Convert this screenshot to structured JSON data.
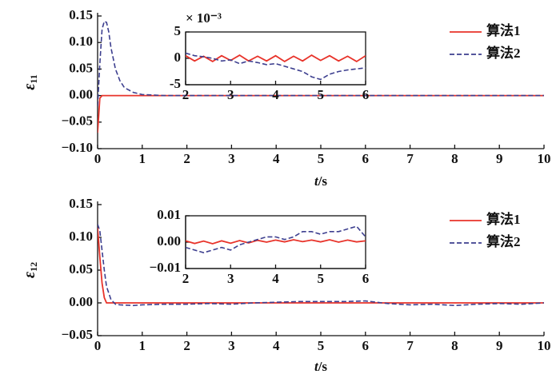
{
  "chart_data": [
    {
      "type": "line",
      "role": "main",
      "x": [
        0,
        0.05,
        0.1,
        0.15,
        0.2,
        0.25,
        0.3,
        0.4,
        0.5,
        0.6,
        0.8,
        1,
        1.5,
        2,
        3,
        4,
        5,
        6,
        7,
        8,
        9,
        10
      ],
      "series": [
        {
          "name": "算法1",
          "color": "#e8332a",
          "style": "solid",
          "values": [
            -0.07,
            -0.005,
            0,
            0,
            0,
            0,
            0,
            0,
            0,
            0,
            0,
            0,
            0,
            0,
            0,
            0,
            0,
            0,
            0,
            0,
            0,
            0
          ]
        },
        {
          "name": "算法2",
          "color": "#3d3f8f",
          "style": "dashed",
          "values": [
            -0.02,
            0.06,
            0.125,
            0.14,
            0.138,
            0.12,
            0.09,
            0.05,
            0.028,
            0.015,
            0.006,
            0.002,
            0,
            0,
            0,
            0,
            0,
            0,
            0,
            0,
            0,
            0
          ]
        }
      ],
      "xlim": [
        0,
        10
      ],
      "xticks": [
        0,
        1,
        2,
        3,
        4,
        5,
        6,
        7,
        8,
        9,
        10
      ],
      "ylim": [
        -0.1,
        0.15
      ],
      "yticks": [
        {
          "value": -0.1,
          "label": "−0.10"
        },
        {
          "value": -0.05,
          "label": "−0.05"
        },
        {
          "value": 0,
          "label": "0.00"
        },
        0.05,
        {
          "value": 0.1,
          "label": "0.10"
        },
        0.15
      ],
      "xlabel": {
        "symbol": "t",
        "unit": "/s"
      },
      "ylabel": {
        "symbol": "ε",
        "subscript": "11"
      },
      "legend": "upper right"
    },
    {
      "type": "line",
      "role": "inset",
      "x": [
        2,
        2.2,
        2.4,
        2.6,
        2.8,
        3,
        3.2,
        3.4,
        3.6,
        3.8,
        4,
        4.2,
        4.4,
        4.6,
        4.8,
        5,
        5.2,
        5.4,
        5.6,
        5.8,
        6
      ],
      "series": [
        {
          "name": "算法1",
          "color": "#e8332a",
          "style": "solid",
          "values": [
            0.5,
            -0.5,
            0.4,
            -0.6,
            0.5,
            -0.4,
            0.6,
            -0.5,
            0.4,
            -0.5,
            0.5,
            -0.6,
            0.4,
            -0.5,
            0.6,
            -0.4,
            0.5,
            -0.5,
            0.4,
            -0.6,
            0.5
          ]
        },
        {
          "name": "算法2",
          "color": "#3d3f8f",
          "style": "dashed",
          "values": [
            1,
            0.5,
            0.3,
            0,
            -0.5,
            -0.3,
            -1,
            -0.5,
            -0.8,
            -1.2,
            -1,
            -1.5,
            -2,
            -2.5,
            -3.5,
            -4,
            -3,
            -2.5,
            -2.2,
            -2,
            -1.8
          ]
        }
      ],
      "xlim": [
        2,
        6
      ],
      "xticks": [
        2,
        3,
        4,
        5,
        6
      ],
      "ylim": [
        -5,
        5
      ],
      "yticks": [
        -5,
        0,
        5
      ],
      "multiplier": "× 10⁻³"
    },
    {
      "type": "line",
      "role": "main",
      "x": [
        0,
        0.05,
        0.1,
        0.15,
        0.2,
        0.3,
        0.4,
        0.5,
        0.8,
        1,
        1.5,
        2,
        2.5,
        3,
        3.5,
        4,
        4.5,
        5,
        5.5,
        6,
        6.5,
        7,
        7.5,
        8,
        8.5,
        9,
        9.5,
        10
      ],
      "series": [
        {
          "name": "算法1",
          "color": "#e8332a",
          "style": "solid",
          "values": [
            0.115,
            0.07,
            0.03,
            0.008,
            0,
            0,
            0,
            0,
            0,
            0,
            0,
            0,
            0,
            0,
            0,
            0,
            0,
            0,
            0,
            0,
            0,
            0,
            0,
            0,
            0,
            0,
            0,
            0
          ]
        },
        {
          "name": "算法2",
          "color": "#3d3f8f",
          "style": "dashed",
          "values": [
            0.12,
            0.11,
            0.08,
            0.05,
            0.025,
            0.005,
            -0.002,
            -0.003,
            -0.004,
            -0.003,
            -0.002,
            -0.002,
            -0.001,
            -0.002,
            0,
            0.001,
            0.002,
            0.002,
            0.002,
            0.003,
            -0.001,
            -0.003,
            -0.002,
            -0.004,
            -0.002,
            -0.001,
            -0.002,
            0
          ]
        }
      ],
      "xlim": [
        0,
        10
      ],
      "xticks": [
        0,
        1,
        2,
        3,
        4,
        5,
        6,
        7,
        8,
        9,
        10
      ],
      "ylim": [
        -0.05,
        0.15
      ],
      "yticks": [
        {
          "value": -0.05,
          "label": "−0.05"
        },
        {
          "value": 0,
          "label": "0.00"
        },
        0.05,
        {
          "value": 0.1,
          "label": "0.10"
        },
        0.15
      ],
      "xlabel": {
        "symbol": "t",
        "unit": "/s"
      },
      "ylabel": {
        "symbol": "ε",
        "subscript": "12"
      },
      "legend": "upper right"
    },
    {
      "type": "line",
      "role": "inset",
      "x": [
        2,
        2.2,
        2.4,
        2.6,
        2.8,
        3,
        3.2,
        3.4,
        3.6,
        3.8,
        4,
        4.2,
        4.4,
        4.6,
        4.8,
        5,
        5.2,
        5.4,
        5.6,
        5.8,
        6
      ],
      "series": [
        {
          "name": "算法1",
          "color": "#e8332a",
          "style": "solid",
          "values": [
            0.0005,
            -0.0005,
            0.0004,
            -0.0006,
            0.0005,
            -0.0004,
            0.0006,
            -0.0003,
            0.0007,
            0,
            0.0008,
            0.0001,
            0.0009,
            0.0002,
            0.0008,
            0.0001,
            0.0009,
            0,
            0.0008,
            0.0001,
            0.0005
          ]
        },
        {
          "name": "算法2",
          "color": "#3d3f8f",
          "style": "dashed",
          "values": [
            -0.002,
            -0.003,
            -0.004,
            -0.003,
            -0.002,
            -0.003,
            -0.001,
            0,
            0.001,
            0.002,
            0.002,
            0.001,
            0.002,
            0.004,
            0.004,
            0.003,
            0.004,
            0.004,
            0.005,
            0.006,
            0.002
          ]
        }
      ],
      "xlim": [
        2,
        6
      ],
      "xticks": [
        2,
        3,
        4,
        5,
        6
      ],
      "ylim": [
        -0.01,
        0.01
      ],
      "yticks": [
        {
          "value": -0.01,
          "label": "−0.01"
        },
        {
          "value": 0,
          "label": "0.00"
        },
        0.01
      ]
    }
  ]
}
